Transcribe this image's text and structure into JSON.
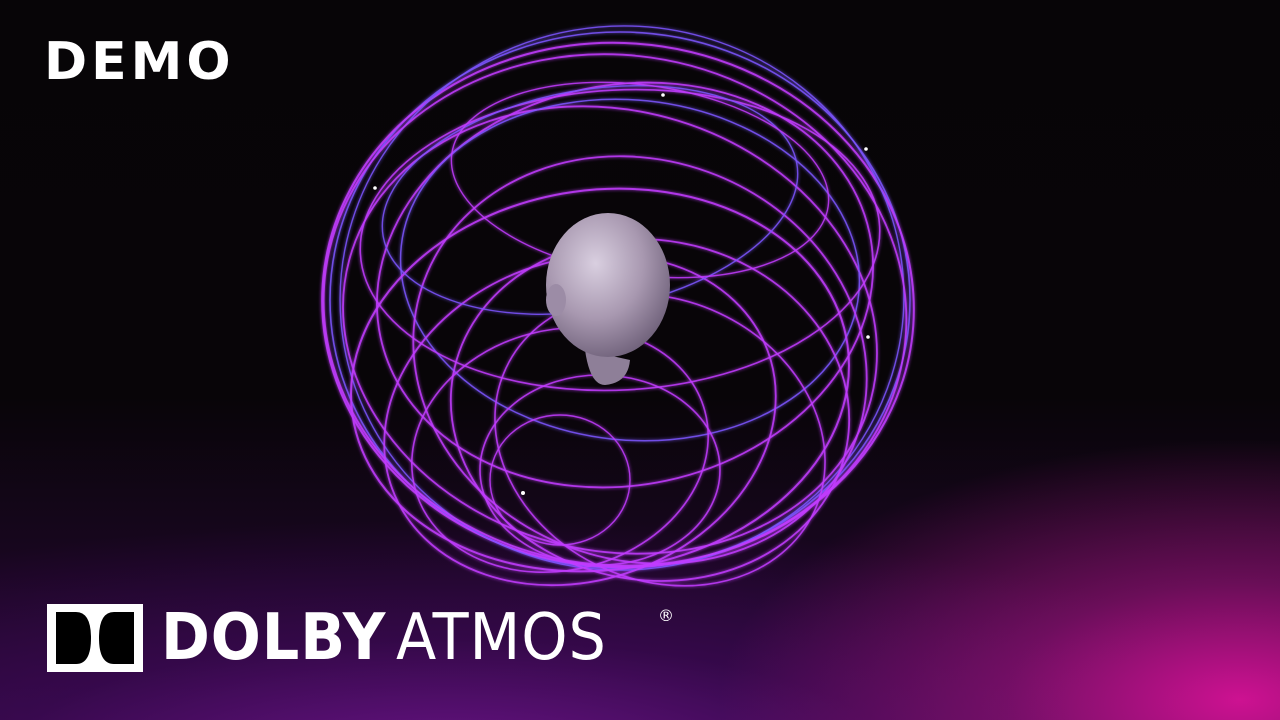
{
  "overlay": {
    "label": "DEMO"
  },
  "logo": {
    "brand": "DOLBY",
    "product": "ATMOS",
    "registered": "®"
  },
  "colors": {
    "ring": "#c23cff",
    "ring_blue": "#7d55ff",
    "head": "#b4a4bc",
    "glow_pink": "#d61296",
    "glow_purple": "#6e148c"
  }
}
